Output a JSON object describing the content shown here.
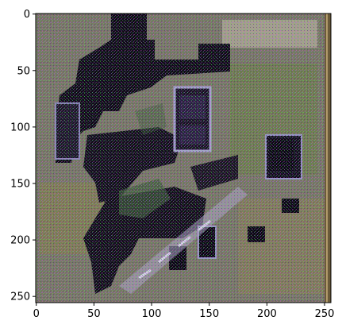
{
  "figure": {
    "x_ticks": [
      "0",
      "50",
      "100",
      "150",
      "200",
      "250"
    ],
    "y_ticks": [
      "0",
      "50",
      "100",
      "150",
      "200",
      "250"
    ],
    "xlim": [
      0,
      256
    ],
    "ylim": [
      256,
      0
    ],
    "grid": false,
    "image_description_colors": {
      "background_tone": "#7a7a52",
      "dark_region": "#0d0a14",
      "green_tone": "#5f7a4a",
      "purple_noise": "#6a5aa8",
      "light_patch": "#c9c2b0"
    }
  }
}
